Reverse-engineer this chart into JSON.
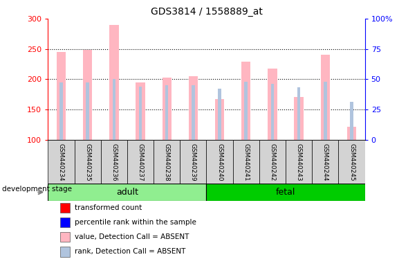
{
  "title": "GDS3814 / 1558889_at",
  "samples": [
    "GSM440234",
    "GSM440235",
    "GSM440236",
    "GSM440237",
    "GSM440238",
    "GSM440239",
    "GSM440240",
    "GSM440241",
    "GSM440242",
    "GSM440243",
    "GSM440244",
    "GSM440245"
  ],
  "transformed_count": [
    245,
    248,
    290,
    195,
    202,
    205,
    167,
    229,
    218,
    170,
    240,
    121
  ],
  "percentile_rank": [
    47,
    47,
    50,
    44,
    45,
    45,
    42,
    48,
    46,
    43,
    48,
    31
  ],
  "groups": [
    {
      "label": "adult",
      "indices": [
        0,
        1,
        2,
        3,
        4,
        5
      ],
      "color": "#90EE90"
    },
    {
      "label": "fetal",
      "indices": [
        6,
        7,
        8,
        9,
        10,
        11
      ],
      "color": "#00CC00"
    }
  ],
  "ylim_left": [
    100,
    300
  ],
  "ylim_right": [
    0,
    100
  ],
  "yticks_left": [
    100,
    150,
    200,
    250,
    300
  ],
  "yticks_right": [
    0,
    25,
    50,
    75,
    100
  ],
  "bar_color_absent": "#FFB6C1",
  "rank_color_absent": "#B0C4DE",
  "bar_width": 0.35,
  "rank_bar_width": 0.12,
  "group_label": "development stage",
  "legend_items": [
    {
      "label": "transformed count",
      "color": "#FF0000"
    },
    {
      "label": "percentile rank within the sample",
      "color": "#0000FF"
    },
    {
      "label": "value, Detection Call = ABSENT",
      "color": "#FFB6C1"
    },
    {
      "label": "rank, Detection Call = ABSENT",
      "color": "#B0C4DE"
    }
  ]
}
